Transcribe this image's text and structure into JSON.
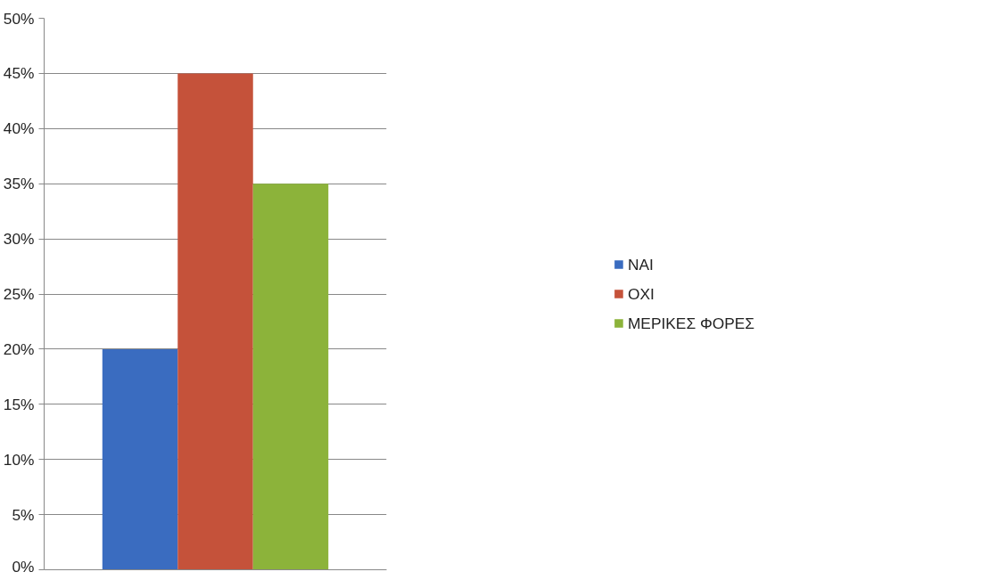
{
  "chart_data": {
    "type": "bar",
    "categories": [
      null
    ],
    "series": [
      {
        "name": "ΝΑΙ",
        "color": "#3a6cc0",
        "values": [
          20
        ]
      },
      {
        "name": "ΟΧΙ",
        "color": "#c5523a",
        "values": [
          45
        ]
      },
      {
        "name": "ΜΕΡΙΚΕΣ ΦΟΡΕΣ",
        "color": "#8cb33a",
        "values": [
          35
        ]
      }
    ],
    "ylim": [
      0,
      50
    ],
    "yticks": [
      {
        "value": 0,
        "label": "0%"
      },
      {
        "value": 5,
        "label": "5%"
      },
      {
        "value": 10,
        "label": "10%"
      },
      {
        "value": 15,
        "label": "15%"
      },
      {
        "value": 20,
        "label": "20%"
      },
      {
        "value": 25,
        "label": "25%"
      },
      {
        "value": 30,
        "label": "30%"
      },
      {
        "value": 35,
        "label": "35%"
      },
      {
        "value": 40,
        "label": "40%"
      },
      {
        "value": 45,
        "label": "45%"
      },
      {
        "value": 50,
        "label": "50%"
      }
    ],
    "grid": "y",
    "legend": "right",
    "tick_labels": "y"
  }
}
